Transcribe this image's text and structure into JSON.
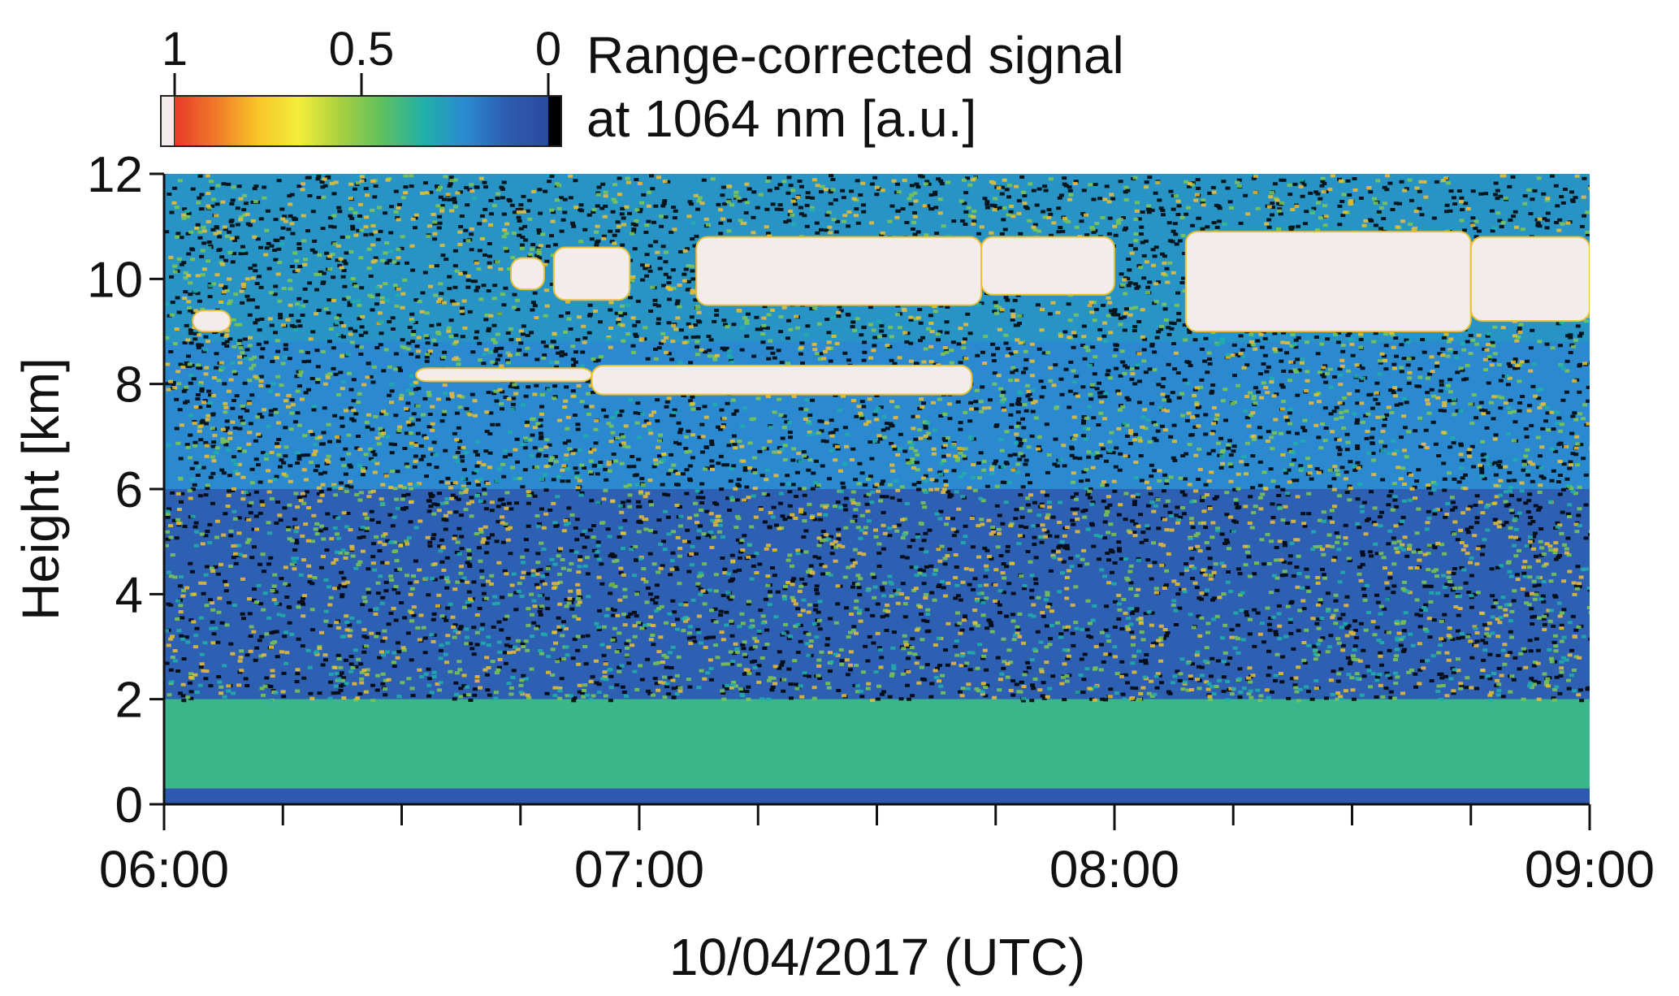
{
  "chart_data": {
    "type": "heatmap",
    "title": "",
    "xlabel": "10/04/2017 (UTC)",
    "ylabel": "Height [km]",
    "x_tick_labels": [
      "06:00",
      "07:00",
      "08:00",
      "09:00"
    ],
    "x_range_hours": [
      6,
      9
    ],
    "x_major_ticks_hours": [
      6,
      7,
      8,
      9
    ],
    "x_minor_tick_step_hours": 0.25,
    "y_tick_labels": [
      "0",
      "2",
      "4",
      "6",
      "8",
      "10",
      "12"
    ],
    "y_range_km": [
      0,
      12
    ],
    "y_ticks_km": [
      0,
      2,
      4,
      6,
      8,
      10,
      12
    ],
    "colorbar": {
      "label_line1": "Range-corrected signal",
      "label_line2": "at 1064 nm [a.u.]",
      "tick_labels": [
        "1",
        "0.5",
        "0"
      ],
      "tick_values": [
        1,
        0.5,
        0
      ],
      "range": [
        1,
        0
      ],
      "saturation_color": "#f4ecea",
      "min_color": "#000000",
      "colors": [
        "#e83a2a",
        "#f07a28",
        "#f8c428",
        "#f2ee3a",
        "#a8d040",
        "#5ec060",
        "#20b0a8",
        "#2a8ad0",
        "#2e5cb0",
        "#2a4aa0"
      ]
    },
    "layers": [
      {
        "description_key": "surface",
        "height_km": [
          0,
          0.3
        ],
        "signal": 0.1
      },
      {
        "description_key": "boundary-layer",
        "height_km": [
          0.3,
          2.0
        ],
        "signal": 0.38
      },
      {
        "description_key": "free-troposphere",
        "height_km": [
          2.0,
          6.0
        ],
        "signal": 0.12
      },
      {
        "description_key": "mid-layer",
        "height_km": [
          6.0,
          8.8
        ],
        "signal": 0.22
      },
      {
        "description_key": "upper-noise",
        "height_km": [
          8.8,
          12.0
        ],
        "signal": 0.25
      }
    ],
    "clouds": [
      {
        "x_hours": [
          6.06,
          6.14
        ],
        "height_km": [
          9.0,
          9.4
        ]
      },
      {
        "x_hours": [
          6.53,
          6.9
        ],
        "height_km": [
          8.05,
          8.3
        ]
      },
      {
        "x_hours": [
          6.9,
          7.7
        ],
        "height_km": [
          7.8,
          8.35
        ]
      },
      {
        "x_hours": [
          6.73,
          6.8
        ],
        "height_km": [
          9.8,
          10.4
        ]
      },
      {
        "x_hours": [
          6.82,
          6.98
        ],
        "height_km": [
          9.6,
          10.6
        ]
      },
      {
        "x_hours": [
          7.12,
          7.72
        ],
        "height_km": [
          9.5,
          10.8
        ]
      },
      {
        "x_hours": [
          7.72,
          8.0
        ],
        "height_km": [
          9.7,
          10.8
        ]
      },
      {
        "x_hours": [
          8.15,
          8.75
        ],
        "height_km": [
          9.0,
          10.9
        ]
      },
      {
        "x_hours": [
          8.75,
          9.0
        ],
        "height_km": [
          9.2,
          10.8
        ]
      }
    ]
  }
}
